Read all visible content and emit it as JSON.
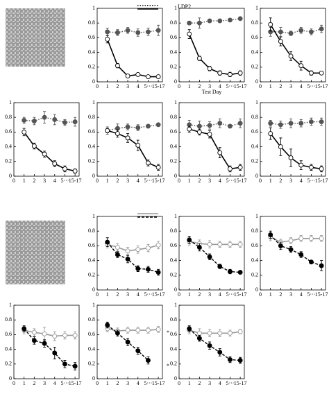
{
  "chart_data": [
    {
      "type": "line",
      "x": [
        1,
        2,
        3,
        4,
        5,
        6
      ],
      "xlim": [
        0,
        6.4
      ],
      "ylim": [
        0,
        1
      ],
      "xticks": [
        0,
        1,
        2,
        3,
        4,
        {
          "value": 5,
          "label": "5···"
        },
        {
          "value": 6,
          "label": "15-17"
        }
      ],
      "yticks": [
        0,
        0.2,
        0.4,
        0.6,
        0.8,
        1
      ],
      "legend_text": "LDP2",
      "series": [
        {
          "color": "#555555",
          "marker_fill": "#555555",
          "dash": "dotted",
          "values": [
            0.68,
            0.67,
            0.7,
            0.67,
            0.68,
            0.7
          ],
          "errors": [
            0.05,
            0.04,
            0.04,
            0.05,
            0.05,
            0.07
          ]
        },
        {
          "color": "#000000",
          "marker_fill": "#ffffff",
          "dash": "solid",
          "values": [
            0.58,
            0.22,
            0.08,
            0.1,
            0.07,
            0.07
          ],
          "errors": [
            0.05,
            0.03,
            0.02,
            0.02,
            0.02,
            0.02
          ]
        }
      ]
    },
    {
      "type": "line",
      "x": [
        1,
        2,
        3,
        4,
        5,
        6
      ],
      "xlim": [
        0,
        6.4
      ],
      "ylim": [
        0,
        1
      ],
      "xticks": [
        0,
        1,
        2,
        3,
        4,
        {
          "value": 5,
          "label": "5···"
        },
        {
          "value": 6,
          "label": "15-17"
        }
      ],
      "yticks": [
        0,
        0.2,
        0.4,
        0.6,
        0.8,
        1
      ],
      "xlabel": "Test Day",
      "series": [
        {
          "color": "#555555",
          "marker_fill": "#555555",
          "dash": "dotted",
          "values": [
            0.8,
            0.8,
            0.83,
            0.83,
            0.84,
            0.86
          ],
          "errors": [
            0.02,
            0.07,
            0.02,
            0.02,
            0.02,
            0.02
          ]
        },
        {
          "color": "#000000",
          "marker_fill": "#ffffff",
          "dash": "solid",
          "values": [
            0.65,
            0.32,
            0.18,
            0.12,
            0.1,
            0.12
          ],
          "errors": [
            0.06,
            0.03,
            0.03,
            0.03,
            0.03,
            0.03
          ]
        }
      ]
    },
    {
      "type": "line",
      "x": [
        1,
        2,
        3,
        4,
        5,
        6
      ],
      "xlim": [
        0,
        6.4
      ],
      "ylim": [
        0,
        1
      ],
      "xticks": [
        0,
        1,
        2,
        3,
        4,
        {
          "value": 5,
          "label": "5···"
        },
        {
          "value": 6,
          "label": "15-17"
        }
      ],
      "yticks": [
        0,
        0.2,
        0.4,
        0.6,
        0.8,
        1
      ],
      "series": [
        {
          "color": "#555555",
          "marker_fill": "#555555",
          "dash": "dotted",
          "values": [
            0.68,
            0.68,
            0.66,
            0.7,
            0.68,
            0.72
          ],
          "errors": [
            0.06,
            0.06,
            0.03,
            0.04,
            0.04,
            0.05
          ]
        },
        {
          "color": "#000000",
          "marker_fill": "#ffffff",
          "dash": "solid",
          "values": [
            0.78,
            0.55,
            0.35,
            0.22,
            0.12,
            0.12
          ],
          "errors": [
            0.09,
            0.06,
            0.06,
            0.06,
            0.03,
            0.02
          ]
        }
      ]
    },
    {
      "type": "line",
      "x": [
        1,
        2,
        3,
        4,
        5,
        6
      ],
      "xlim": [
        0,
        6.4
      ],
      "ylim": [
        0,
        1
      ],
      "xticks": [
        0,
        1,
        2,
        3,
        4,
        {
          "value": 5,
          "label": "5···"
        },
        {
          "value": 6,
          "label": "15-17"
        }
      ],
      "yticks": [
        0,
        0.2,
        0.4,
        0.6,
        0.8,
        1
      ],
      "series": [
        {
          "color": "#555555",
          "marker_fill": "#555555",
          "dash": "dotted",
          "values": [
            0.76,
            0.75,
            0.8,
            0.77,
            0.73,
            0.74
          ],
          "errors": [
            0.04,
            0.05,
            0.08,
            0.07,
            0.04,
            0.06
          ]
        },
        {
          "color": "#000000",
          "marker_fill": "#ffffff",
          "dash": "solid",
          "values": [
            0.6,
            0.41,
            0.3,
            0.17,
            0.1,
            0.07
          ],
          "errors": [
            0.05,
            0.04,
            0.04,
            0.04,
            0.04,
            0.03
          ]
        }
      ]
    },
    {
      "type": "line",
      "x": [
        1,
        2,
        3,
        4,
        5,
        6
      ],
      "xlim": [
        0,
        6.4
      ],
      "ylim": [
        0,
        1
      ],
      "xticks": [
        0,
        1,
        2,
        3,
        4,
        {
          "value": 5,
          "label": "5···"
        },
        {
          "value": 6,
          "label": "15-17"
        }
      ],
      "yticks": [
        0,
        0.2,
        0.4,
        0.6,
        0.8,
        1
      ],
      "series": [
        {
          "color": "#555555",
          "marker_fill": "#555555",
          "dash": "dotted",
          "values": [
            0.62,
            0.65,
            0.67,
            0.66,
            0.68,
            0.7
          ],
          "errors": [
            0.05,
            0.06,
            0.04,
            0.04,
            0.02,
            0.02
          ]
        },
        {
          "color": "#000000",
          "marker_fill": "#ffffff",
          "dash": "solid",
          "values": [
            0.62,
            0.58,
            0.52,
            0.42,
            0.18,
            0.12
          ],
          "errors": [
            0.03,
            0.05,
            0.06,
            0.07,
            0.04,
            0.04
          ]
        }
      ]
    },
    {
      "type": "line",
      "x": [
        1,
        2,
        3,
        4,
        5,
        6
      ],
      "xlim": [
        0,
        6.4
      ],
      "ylim": [
        0,
        1
      ],
      "xticks": [
        0,
        1,
        2,
        3,
        4,
        {
          "value": 5,
          "label": "5···"
        },
        {
          "value": 6,
          "label": "15-17"
        }
      ],
      "yticks": [
        0,
        0.2,
        0.4,
        0.6,
        0.8,
        1
      ],
      "series": [
        {
          "color": "#555555",
          "marker_fill": "#555555",
          "dash": "dotted",
          "values": [
            0.7,
            0.68,
            0.69,
            0.72,
            0.68,
            0.72
          ],
          "errors": [
            0.06,
            0.07,
            0.05,
            0.06,
            0.02,
            0.06
          ]
        },
        {
          "color": "#000000",
          "marker_fill": "#ffffff",
          "dash": "solid",
          "values": [
            0.64,
            0.6,
            0.57,
            0.32,
            0.1,
            0.12
          ],
          "errors": [
            0.04,
            0.04,
            0.05,
            0.07,
            0.04,
            0.04
          ]
        }
      ]
    },
    {
      "type": "line",
      "x": [
        1,
        2,
        3,
        4,
        5,
        6
      ],
      "xlim": [
        0,
        6.4
      ],
      "ylim": [
        0,
        1
      ],
      "xticks": [
        0,
        1,
        2,
        3,
        4,
        {
          "value": 5,
          "label": "5···"
        },
        {
          "value": 6,
          "label": "15-17"
        }
      ],
      "yticks": [
        0,
        0.2,
        0.4,
        0.6,
        0.8,
        1
      ],
      "series": [
        {
          "color": "#555555",
          "marker_fill": "#555555",
          "dash": "dotted",
          "values": [
            0.72,
            0.7,
            0.72,
            0.72,
            0.74,
            0.74
          ],
          "errors": [
            0.04,
            0.05,
            0.06,
            0.05,
            0.05,
            0.05
          ]
        },
        {
          "color": "#000000",
          "marker_fill": "#ffffff",
          "dash": "solid",
          "values": [
            0.58,
            0.4,
            0.25,
            0.15,
            0.12,
            0.1
          ],
          "errors": [
            0.08,
            0.12,
            0.12,
            0.06,
            0.04,
            0.04
          ]
        }
      ]
    },
    {
      "type": "line",
      "x": [
        1,
        2,
        3,
        4,
        5,
        6
      ],
      "xlim": [
        0,
        6.4
      ],
      "ylim": [
        0,
        1
      ],
      "xticks": [
        0,
        1,
        2,
        3,
        4,
        {
          "value": 5,
          "label": "5···"
        },
        {
          "value": 6,
          "label": "15-17"
        }
      ],
      "yticks": [
        0,
        0.2,
        0.4,
        0.6,
        0.8,
        1
      ],
      "series": [
        {
          "color": "#999999",
          "marker_fill": "#ffffff",
          "dash": "solid",
          "values": [
            0.62,
            0.58,
            0.53,
            0.55,
            0.57,
            0.61
          ],
          "errors": [
            0.05,
            0.05,
            0.05,
            0.05,
            0.05,
            0.05
          ]
        },
        {
          "color": "#000000",
          "marker_fill": "#000000",
          "dash": "dashed",
          "values": [
            0.65,
            0.48,
            0.42,
            0.29,
            0.28,
            0.24
          ],
          "errors": [
            0.06,
            0.04,
            0.05,
            0.04,
            0.04,
            0.04
          ]
        }
      ]
    },
    {
      "type": "line",
      "x": [
        1,
        2,
        3,
        4,
        5,
        6
      ],
      "xlim": [
        0,
        6.4
      ],
      "ylim": [
        0,
        1
      ],
      "xticks": [
        0,
        1,
        2,
        3,
        4,
        {
          "value": 5,
          "label": "5···"
        },
        {
          "value": 6,
          "label": "15-17"
        }
      ],
      "yticks": [
        0,
        0.2,
        0.4,
        0.6,
        0.8,
        1
      ],
      "series": [
        {
          "color": "#999999",
          "marker_fill": "#ffffff",
          "dash": "solid",
          "values": [
            0.66,
            0.63,
            0.62,
            0.62,
            0.62,
            0.62
          ],
          "errors": [
            0.05,
            0.05,
            0.05,
            0.04,
            0.04,
            0.04
          ]
        },
        {
          "color": "#000000",
          "marker_fill": "#000000",
          "dash": "dashed",
          "values": [
            0.68,
            0.58,
            0.45,
            0.32,
            0.25,
            0.24
          ],
          "errors": [
            0.05,
            0.05,
            0.04,
            0.03,
            0.03,
            0.01
          ]
        }
      ]
    },
    {
      "type": "line",
      "x": [
        1,
        2,
        3,
        4,
        5,
        6
      ],
      "xlim": [
        0,
        6.4
      ],
      "ylim": [
        0,
        1
      ],
      "xticks": [
        0,
        1,
        2,
        3,
        4,
        {
          "value": 5,
          "label": "5···"
        },
        {
          "value": 6,
          "label": "15-17"
        }
      ],
      "yticks": [
        0,
        0.2,
        0.4,
        0.6,
        0.8,
        1
      ],
      "series": [
        {
          "color": "#999999",
          "marker_fill": "#ffffff",
          "dash": "solid",
          "values": [
            0.72,
            0.65,
            0.67,
            0.7,
            0.7,
            0.7
          ],
          "errors": [
            0.05,
            0.04,
            0.04,
            0.04,
            0.04,
            0.04
          ]
        },
        {
          "color": "#000000",
          "marker_fill": "#000000",
          "dash": "dashed",
          "values": [
            0.75,
            0.6,
            0.55,
            0.48,
            0.38,
            0.33
          ],
          "errors": [
            0.05,
            0.05,
            0.04,
            0.04,
            0.02,
            0.07
          ]
        }
      ]
    },
    {
      "type": "line",
      "x": [
        1,
        2,
        3,
        4,
        5,
        6
      ],
      "xlim": [
        0,
        6.4
      ],
      "ylim": [
        0,
        1
      ],
      "xticks": [
        0,
        1,
        2,
        3,
        4,
        {
          "value": 5,
          "label": "5···"
        },
        {
          "value": 6,
          "label": "15-17"
        }
      ],
      "yticks": [
        0,
        0.2,
        0.4,
        0.6,
        0.8,
        1
      ],
      "series": [
        {
          "color": "#999999",
          "marker_fill": "#ffffff",
          "dash": "solid",
          "values": [
            0.66,
            0.63,
            0.61,
            0.58,
            0.59,
            0.59
          ],
          "errors": [
            0.05,
            0.05,
            0.09,
            0.06,
            0.05,
            0.05
          ]
        },
        {
          "color": "#000000",
          "marker_fill": "#000000",
          "dash": "dashed",
          "values": [
            0.68,
            0.52,
            0.48,
            0.35,
            0.2,
            0.17
          ],
          "errors": [
            0.04,
            0.05,
            0.05,
            0.08,
            0.05,
            0.05
          ]
        }
      ]
    },
    {
      "type": "line",
      "x": [
        1,
        2,
        3,
        4,
        5,
        6
      ],
      "xlim": [
        0,
        6.4
      ],
      "ylim": [
        0,
        1
      ],
      "xticks": [
        0,
        1,
        2,
        3,
        4,
        {
          "value": 5,
          "label": "5···"
        },
        {
          "value": 6,
          "label": "15-17"
        }
      ],
      "yticks": [
        0,
        0.2,
        0.4,
        0.6,
        0.8,
        1
      ],
      "annotations": [
        "*",
        "*"
      ],
      "series": [
        {
          "color": "#999999",
          "marker_fill": "#ffffff",
          "dash": "solid",
          "values": [
            0.68,
            0.65,
            0.66,
            0.66,
            0.66,
            0.67
          ],
          "errors": [
            0.04,
            0.04,
            0.04,
            0.04,
            0.04,
            0.04
          ]
        },
        {
          "color": "#000000",
          "marker_fill": "#000000",
          "dash": "dashed",
          "values": [
            0.73,
            0.62,
            0.5,
            0.38,
            0.25,
            null
          ],
          "errors": [
            0.04,
            0.04,
            0.05,
            0.05,
            0.05,
            null
          ]
        }
      ]
    },
    {
      "type": "line",
      "x": [
        1,
        2,
        3,
        4,
        5,
        6
      ],
      "xlim": [
        0,
        6.4
      ],
      "ylim": [
        0,
        1
      ],
      "xticks": [
        0,
        1,
        2,
        3,
        4,
        {
          "value": 5,
          "label": "5···"
        },
        {
          "value": 6,
          "label": "15-17"
        }
      ],
      "yticks": [
        0,
        0.2,
        0.4,
        0.6,
        0.8,
        1
      ],
      "series": [
        {
          "color": "#999999",
          "marker_fill": "#ffffff",
          "dash": "solid",
          "values": [
            0.66,
            0.62,
            0.62,
            0.62,
            0.62,
            0.64
          ],
          "errors": [
            0.05,
            0.06,
            0.05,
            0.05,
            0.04,
            0.03
          ]
        },
        {
          "color": "#000000",
          "marker_fill": "#000000",
          "dash": "dashed",
          "values": [
            0.68,
            0.55,
            0.45,
            0.36,
            0.26,
            0.25
          ],
          "errors": [
            0.04,
            0.04,
            0.05,
            0.05,
            0.04,
            0.04
          ]
        }
      ]
    }
  ]
}
